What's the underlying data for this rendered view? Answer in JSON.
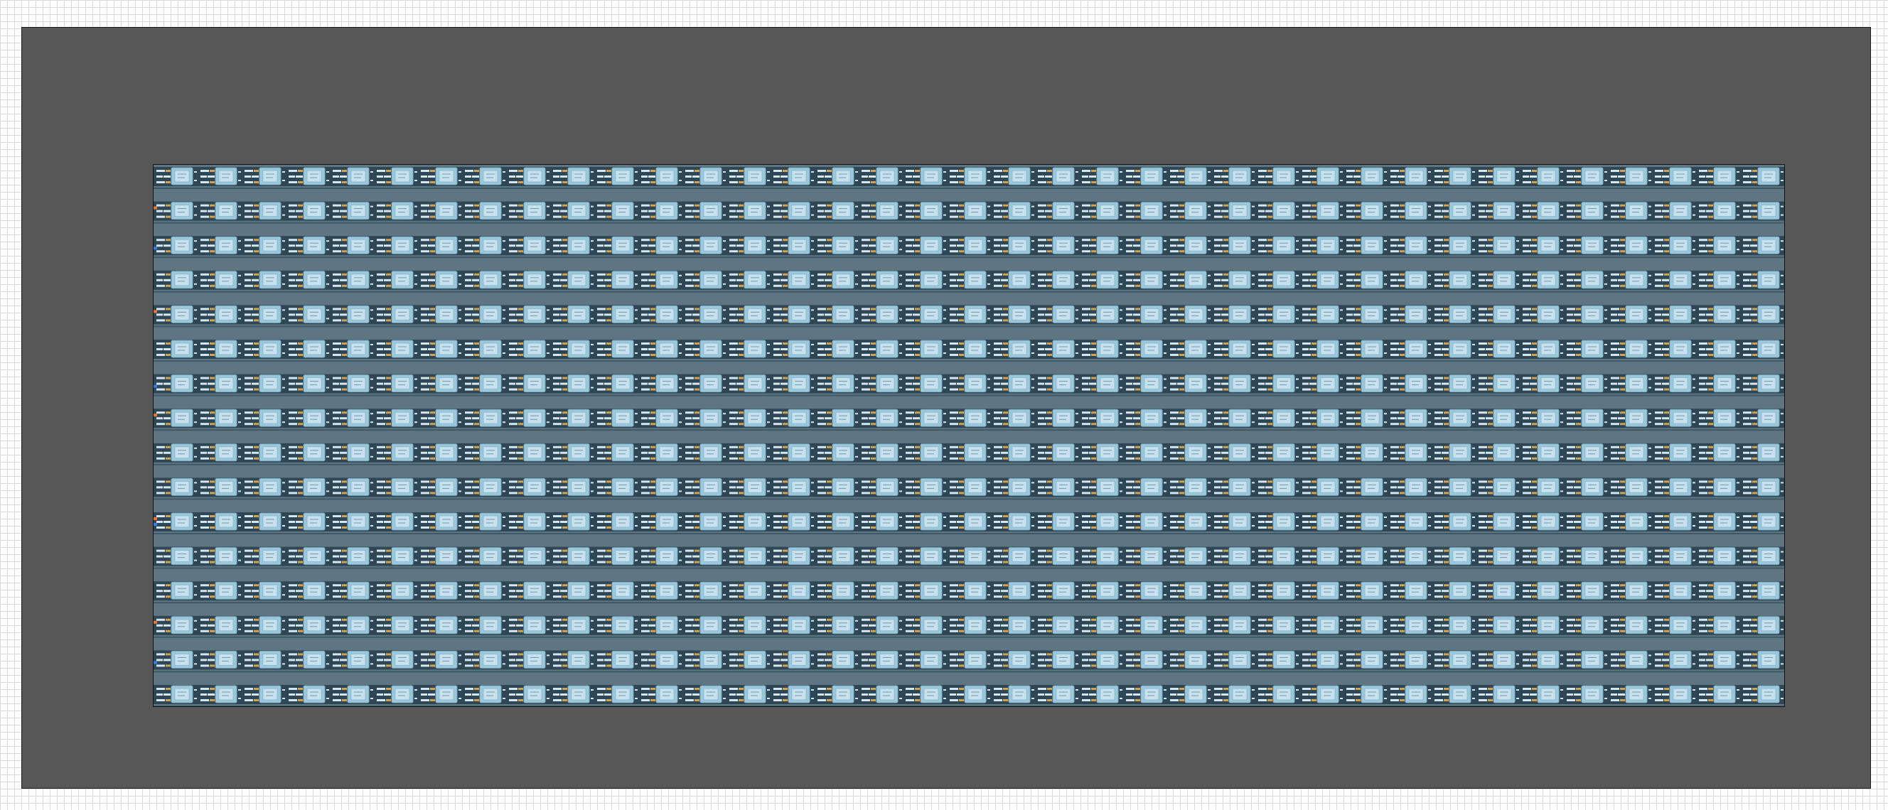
{
  "layout": {
    "rows": 16,
    "modules_per_row": 37
  },
  "colors": {
    "background": "#fdfdfd",
    "grid_line": "#d9d9d9",
    "sheet": "#575757",
    "board": "#5f7582",
    "row_band": "#2f4654",
    "module_fill": "#9cc8dc",
    "module_inner": "#c7e2ee",
    "pin_light": "#d6e7ef",
    "pin_accent": "#d6a14c",
    "edge_marker_orange": "#e07a3a",
    "edge_marker_blue": "#3a7de0"
  },
  "icons": {
    "module": "chip-module-icon",
    "pin_strip": "pin-header-icon"
  }
}
